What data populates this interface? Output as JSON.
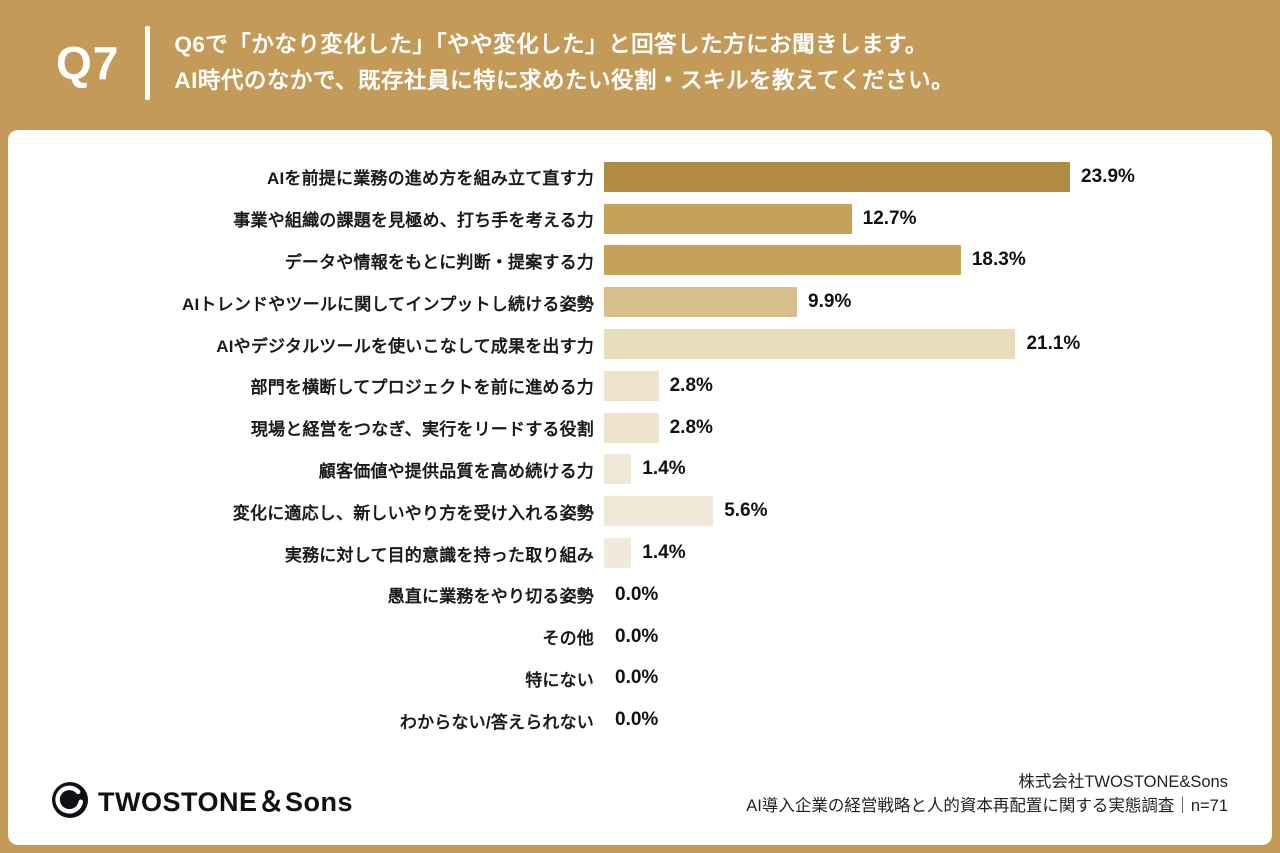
{
  "header": {
    "q_label": "Q7",
    "question_line1": "Q6で「かなり変化した」「やや変化した」と回答した方にお聞きします。",
    "question_line2": "AI時代のなかで、既存社員に特に求めたい役割・スキルを教えてください。"
  },
  "chart_data": {
    "type": "bar",
    "orientation": "horizontal",
    "unit": "%",
    "xlim": [
      0,
      25
    ],
    "title": "AI時代のなかで、既存社員に特に求めたい役割・スキル",
    "categories": [
      "AIを前提に業務の進め方を組み立て直す力",
      "事業や組織の課題を見極め、打ち手を考える力",
      "データや情報をもとに判断・提案する力",
      "AIトレンドやツールに関してインプットし続ける姿勢",
      "AIやデジタルツールを使いこなして成果を出す力",
      "部門を横断してプロジェクトを前に進める力",
      "現場と経営をつなぎ、実行をリードする役割",
      "顧客価値や提供品質を高め続ける力",
      "変化に適応し、新しいやり方を受け入れる姿勢",
      "実務に対して目的意識を持った取り組み",
      "愚直に業務をやり切る姿勢",
      "その他",
      "特にない",
      "わからない/答えられない"
    ],
    "values": [
      23.9,
      12.7,
      18.3,
      9.9,
      21.1,
      2.8,
      2.8,
      1.4,
      5.6,
      1.4,
      0.0,
      0.0,
      0.0,
      0.0
    ],
    "value_labels": [
      "23.9%",
      "12.7%",
      "18.3%",
      "9.9%",
      "21.1%",
      "2.8%",
      "2.8%",
      "1.4%",
      "5.6%",
      "1.4%",
      "0.0%",
      "0.0%",
      "0.0%",
      "0.0%"
    ],
    "bar_colors": [
      "#B28C42",
      "#C5A258",
      "#C5A258",
      "#D7BF8E",
      "#E9DCBB",
      "#EEE4CE",
      "#EEE4CE",
      "#F0E8D6",
      "#F0E8D6",
      "#F1EADA",
      "#F1EADA",
      "#F1EADA",
      "#F1EADA",
      "#F1EADA"
    ]
  },
  "footer": {
    "logo_text": "TWOSTONE＆Sons",
    "company": "株式会社TWOSTONE&Sons",
    "survey": "AI導入企業の経営戦略と人的資本再配置に関する実態調査｜n=71"
  },
  "colors": {
    "background": "#C39A58",
    "card": "#FFFFFF",
    "text_dark": "#1A1A1A"
  }
}
